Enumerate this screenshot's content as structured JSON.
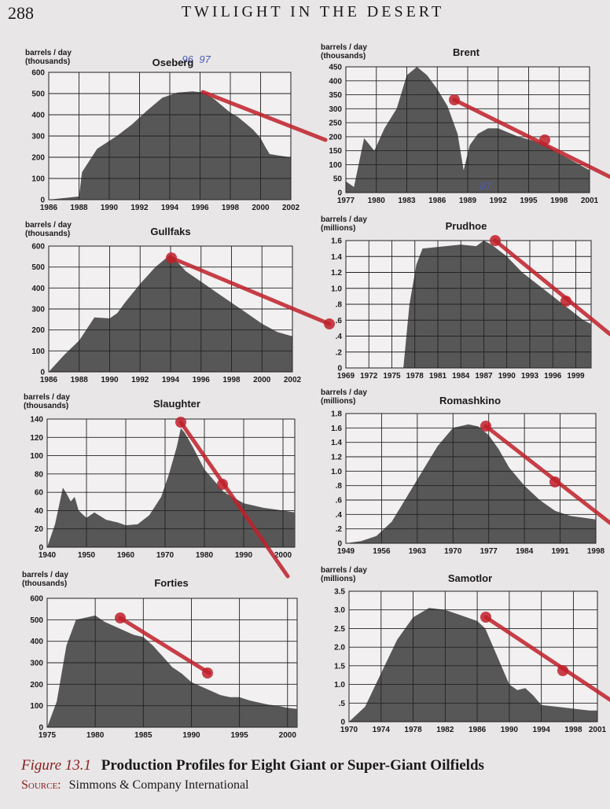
{
  "page": {
    "number": "288",
    "running_head": "TWILIGHT IN THE DESERT",
    "caption_number": "Figure 13.1",
    "caption_text": "Production Profiles for Eight Giant or Super-Giant Oilfields",
    "source_label": "Source:",
    "source_text": "Simmons & Company International",
    "colors": {
      "fill": "#4a4a4a",
      "grid": "#222222",
      "annotation": "#c0202a",
      "pen": "#4a5ab8"
    }
  },
  "chart_data": [
    {
      "type": "area",
      "title": "Oseberg",
      "ylabel": "barrels / day\n(thousands)",
      "ylim": [
        0,
        600
      ],
      "yticks": [
        "0",
        "100",
        "200",
        "300",
        "400",
        "500",
        "600"
      ],
      "xlim": [
        1986,
        2002
      ],
      "xticks": [
        "1986",
        "1988",
        "1990",
        "1992",
        "1994",
        "1996",
        "1998",
        "2000",
        "2002"
      ],
      "grid": true,
      "x": [
        1986,
        1988,
        1988.2,
        1989.2,
        1990.5,
        1991.5,
        1992.5,
        1993.5,
        1994.5,
        1995.5,
        1996.3,
        1997,
        1997.5,
        1998,
        1998.5,
        1999,
        1999.5,
        2000,
        2000.3,
        2000.6,
        2001,
        2001.5,
        2002
      ],
      "values": [
        0,
        15,
        130,
        240,
        300,
        355,
        420,
        480,
        505,
        510,
        505,
        470,
        440,
        410,
        390,
        360,
        330,
        290,
        250,
        215,
        210,
        205,
        200
      ],
      "annotations": [
        "96",
        "97"
      ]
    },
    {
      "type": "area",
      "title": "Brent",
      "ylabel": "barrels / day\n(thousands)",
      "ylim": [
        0,
        450
      ],
      "yticks": [
        "0",
        "50",
        "100",
        "150",
        "200",
        "250",
        "300",
        "350",
        "400",
        "450"
      ],
      "xlim": [
        1977,
        2001
      ],
      "xticks": [
        "1977",
        "1980",
        "1983",
        "1986",
        "1989",
        "1992",
        "1995",
        "1998",
        "2001"
      ],
      "grid": true,
      "x": [
        1977,
        1977.8,
        1978.8,
        1979.8,
        1980.8,
        1982,
        1983,
        1984,
        1985,
        1986,
        1987,
        1988,
        1988.6,
        1989.2,
        1990,
        1991,
        1992,
        1993,
        1994,
        1995,
        1996,
        1997,
        1998,
        1999,
        2000,
        2001
      ],
      "values": [
        40,
        20,
        195,
        150,
        230,
        300,
        420,
        450,
        420,
        370,
        310,
        210,
        80,
        170,
        210,
        230,
        230,
        215,
        200,
        190,
        180,
        165,
        140,
        120,
        100,
        80
      ],
      "annotations": [
        "87"
      ]
    },
    {
      "type": "area",
      "title": "Gullfaks",
      "ylabel": "barrels / day\n(thousands)",
      "ylim": [
        0,
        600
      ],
      "yticks": [
        "0",
        "100",
        "200",
        "300",
        "400",
        "500",
        "600"
      ],
      "xlim": [
        1986,
        2002
      ],
      "xticks": [
        "1986",
        "1988",
        "1990",
        "1992",
        "1994",
        "1996",
        "1998",
        "2000",
        "2002"
      ],
      "grid": true,
      "x": [
        1986,
        1987,
        1988,
        1989,
        1990,
        1990.5,
        1991,
        1992,
        1993,
        1994,
        1995,
        1996,
        1997,
        1998,
        1999,
        2000,
        2001,
        2002
      ],
      "values": [
        0,
        80,
        150,
        260,
        255,
        280,
        330,
        420,
        500,
        560,
        480,
        430,
        380,
        330,
        280,
        230,
        190,
        170
      ],
      "annotations": []
    },
    {
      "type": "area",
      "title": "Prudhoe",
      "ylabel": "barrels / day\n(millions)",
      "ylim": [
        0,
        1.6
      ],
      "yticks": [
        "0",
        ".2",
        ".4",
        ".6",
        ".8",
        "1.0",
        "1.2",
        "1.4",
        "1.6"
      ],
      "xlim": [
        1969,
        2001
      ],
      "xticks": [
        "1969",
        "1972",
        "1975",
        "1978",
        "1981",
        "1984",
        "1987",
        "1990",
        "1993",
        "1996",
        "1999"
      ],
      "grid": true,
      "x": [
        1969,
        1976.5,
        1977.3,
        1978.2,
        1979,
        1981,
        1984,
        1986,
        1987,
        1988,
        1990,
        1992,
        1994,
        1996,
        1998,
        2000,
        2001
      ],
      "values": [
        0,
        0,
        0.8,
        1.3,
        1.5,
        1.52,
        1.55,
        1.53,
        1.6,
        1.55,
        1.4,
        1.2,
        1.05,
        0.9,
        0.75,
        0.6,
        0.55
      ],
      "annotations": []
    },
    {
      "type": "area",
      "title": "Slaughter",
      "ylabel": "barrels / day\n(thousands)",
      "ylim": [
        0,
        140
      ],
      "yticks": [
        "0",
        "20",
        "40",
        "60",
        "80",
        "100",
        "120",
        "140"
      ],
      "xlim": [
        1940,
        2003
      ],
      "xticks": [
        "1940",
        "1950",
        "1960",
        "1970",
        "1980",
        "1990",
        "2000"
      ],
      "grid": true,
      "x": [
        1940,
        1942,
        1944,
        1945,
        1946,
        1947,
        1948,
        1950,
        1952,
        1955,
        1958,
        1960,
        1963,
        1966,
        1969,
        1971,
        1973,
        1974,
        1975,
        1977,
        1980,
        1985,
        1990,
        1995,
        2000,
        2003
      ],
      "values": [
        0,
        25,
        65,
        58,
        50,
        55,
        40,
        32,
        38,
        30,
        27,
        24,
        25,
        35,
        55,
        80,
        110,
        130,
        125,
        110,
        85,
        60,
        48,
        43,
        40,
        38
      ],
      "annotations": []
    },
    {
      "type": "area",
      "title": "Romashkino",
      "ylabel": "barrels / day\n(millions)",
      "ylim": [
        0,
        1.8
      ],
      "yticks": [
        "0",
        ".2",
        ".4",
        ".6",
        ".8",
        "1.0",
        "1.2",
        "1.4",
        "1.6",
        "1.8"
      ],
      "xlim": [
        1949,
        1998
      ],
      "xticks": [
        "1949",
        "1956",
        "1963",
        "1970",
        "1977",
        "1984",
        "1991",
        "1998"
      ],
      "grid": true,
      "x": [
        1949,
        1952,
        1955,
        1958,
        1961,
        1964,
        1967,
        1970,
        1973,
        1975,
        1977,
        1979,
        1981,
        1984,
        1987,
        1990,
        1993,
        1996,
        1998
      ],
      "values": [
        0,
        0.03,
        0.1,
        0.3,
        0.65,
        1.0,
        1.35,
        1.6,
        1.65,
        1.62,
        1.5,
        1.3,
        1.05,
        0.8,
        0.6,
        0.45,
        0.38,
        0.35,
        0.33
      ],
      "annotations": []
    },
    {
      "type": "area",
      "title": "Forties",
      "ylabel": "barrels / day\n(thousands)",
      "ylim": [
        0,
        600
      ],
      "yticks": [
        "0",
        "100",
        "200",
        "300",
        "400",
        "500",
        "600"
      ],
      "xlim": [
        1975,
        2001
      ],
      "xticks": [
        "1975",
        "1980",
        "1985",
        "1990",
        "1995",
        "2000"
      ],
      "grid": true,
      "x": [
        1975,
        1976,
        1977,
        1978,
        1979,
        1980,
        1981,
        1982,
        1983,
        1984,
        1985,
        1986,
        1987,
        1988,
        1989,
        1990,
        1991,
        1992,
        1993,
        1994,
        1995,
        1996,
        1997,
        1998,
        1999,
        2000,
        2001
      ],
      "values": [
        0,
        120,
        380,
        500,
        510,
        520,
        490,
        470,
        450,
        430,
        420,
        380,
        330,
        280,
        250,
        210,
        190,
        170,
        150,
        140,
        140,
        125,
        115,
        105,
        100,
        90,
        85
      ],
      "annotations": []
    },
    {
      "type": "area",
      "title": "Samotlor",
      "ylabel": "barrels / day\n(millions)",
      "ylim": [
        0,
        3.5
      ],
      "yticks": [
        "0",
        ".5",
        "1.0",
        "1.5",
        "2.0",
        "2.5",
        "3.0",
        "3.5"
      ],
      "xlim": [
        1970,
        2001
      ],
      "xticks": [
        "1970",
        "1974",
        "1978",
        "1982",
        "1986",
        "1990",
        "1994",
        "1998",
        "2001"
      ],
      "grid": true,
      "x": [
        1970,
        1972,
        1974,
        1976,
        1978,
        1980,
        1982,
        1984,
        1986,
        1987,
        1988,
        1989,
        1990,
        1991,
        1992,
        1993,
        1994,
        1996,
        1998,
        2000,
        2001
      ],
      "values": [
        0,
        0.4,
        1.3,
        2.2,
        2.8,
        3.05,
        3.0,
        2.85,
        2.7,
        2.5,
        2.0,
        1.5,
        1.0,
        0.85,
        0.9,
        0.7,
        0.45,
        0.4,
        0.35,
        0.3,
        0.3
      ],
      "annotations": []
    }
  ]
}
